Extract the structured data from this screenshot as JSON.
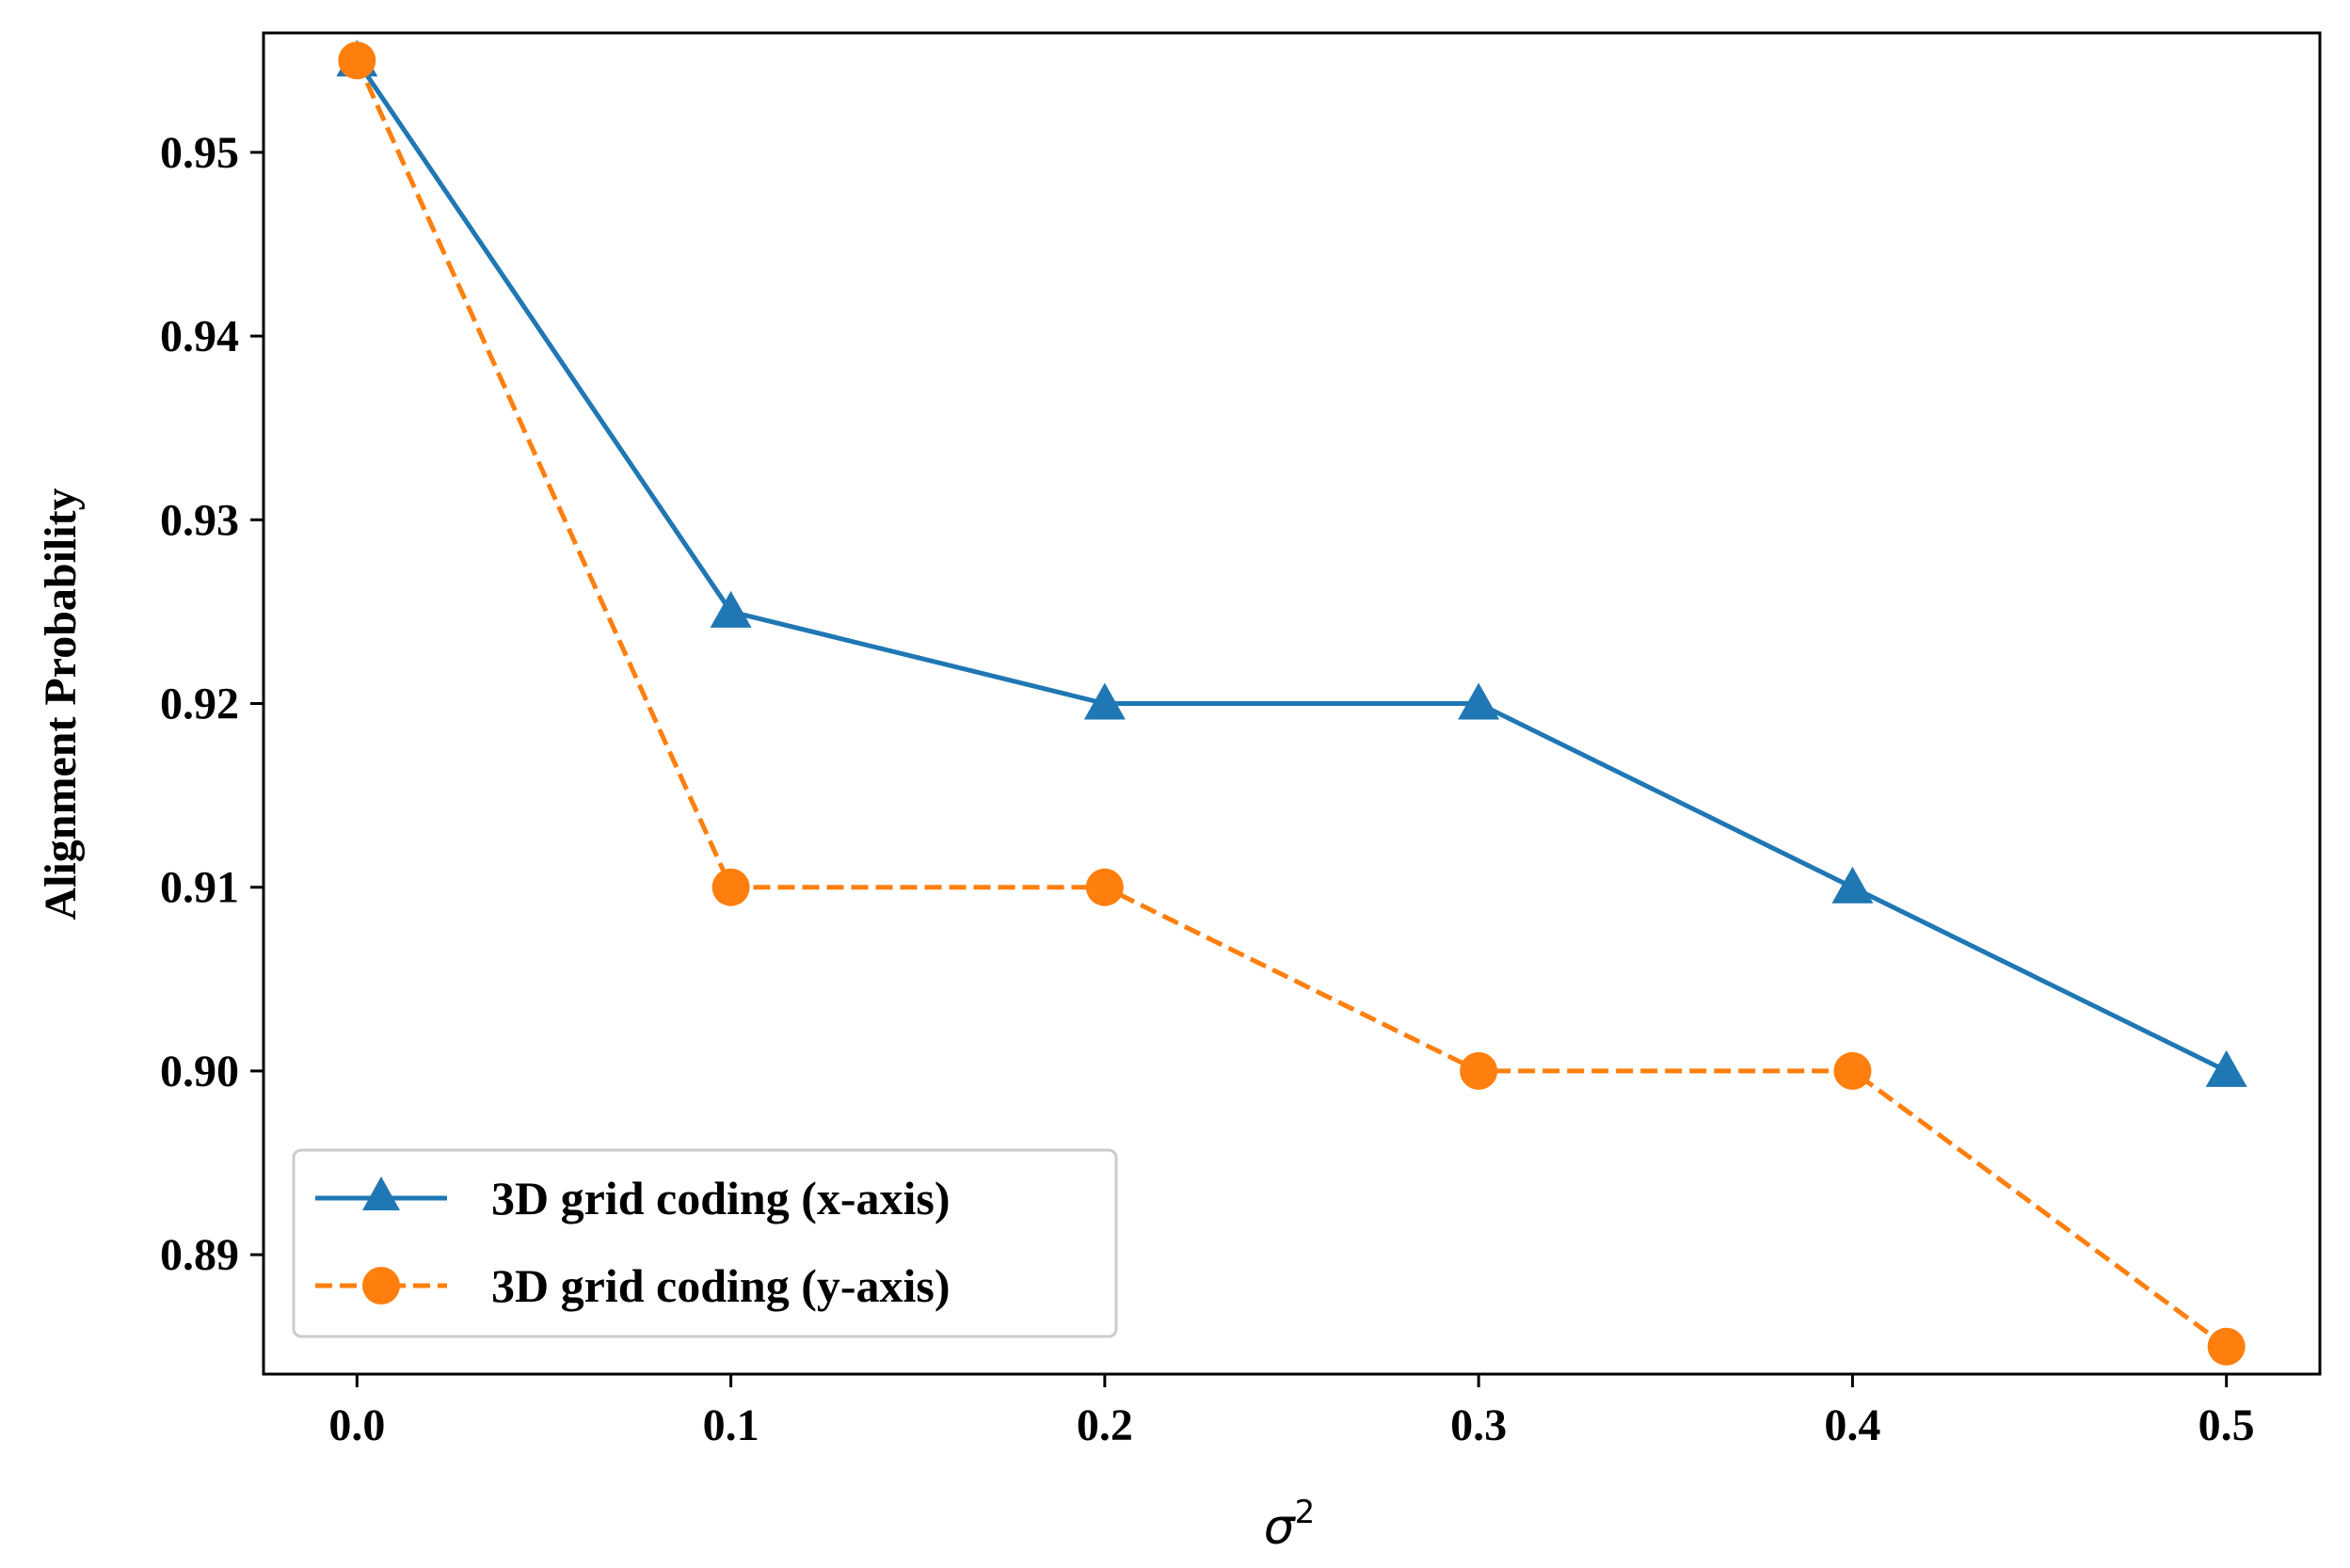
{
  "chart_data": {
    "type": "line",
    "title": "",
    "xlabel": "σ",
    "xlabel_superscript": "2",
    "ylabel": "Alignment Probability",
    "x": [
      0.0,
      0.1,
      0.2,
      0.3,
      0.4,
      0.5
    ],
    "x_tick_labels": [
      "0.0",
      "0.1",
      "0.2",
      "0.3",
      "0.4",
      "0.5"
    ],
    "y_ticks": [
      0.89,
      0.9,
      0.91,
      0.92,
      0.93,
      0.94,
      0.95
    ],
    "y_tick_labels": [
      "0.89",
      "0.90",
      "0.91",
      "0.92",
      "0.93",
      "0.94",
      "0.95"
    ],
    "xlim": [
      -0.025,
      0.525
    ],
    "ylim": [
      0.8835,
      0.9565
    ],
    "grid": false,
    "legend_position": "lower-left",
    "series": [
      {
        "name": "3D grid coding (x-axis)",
        "values": [
          0.955,
          0.925,
          0.92,
          0.92,
          0.91,
          0.9
        ],
        "color": "#1f77b4",
        "line_style": "solid",
        "marker": "triangle"
      },
      {
        "name": "3D grid coding (y-axis)",
        "values": [
          0.955,
          0.91,
          0.91,
          0.9,
          0.9,
          0.885
        ],
        "color": "#ff7f0e",
        "line_style": "dashed",
        "marker": "circle"
      }
    ]
  }
}
